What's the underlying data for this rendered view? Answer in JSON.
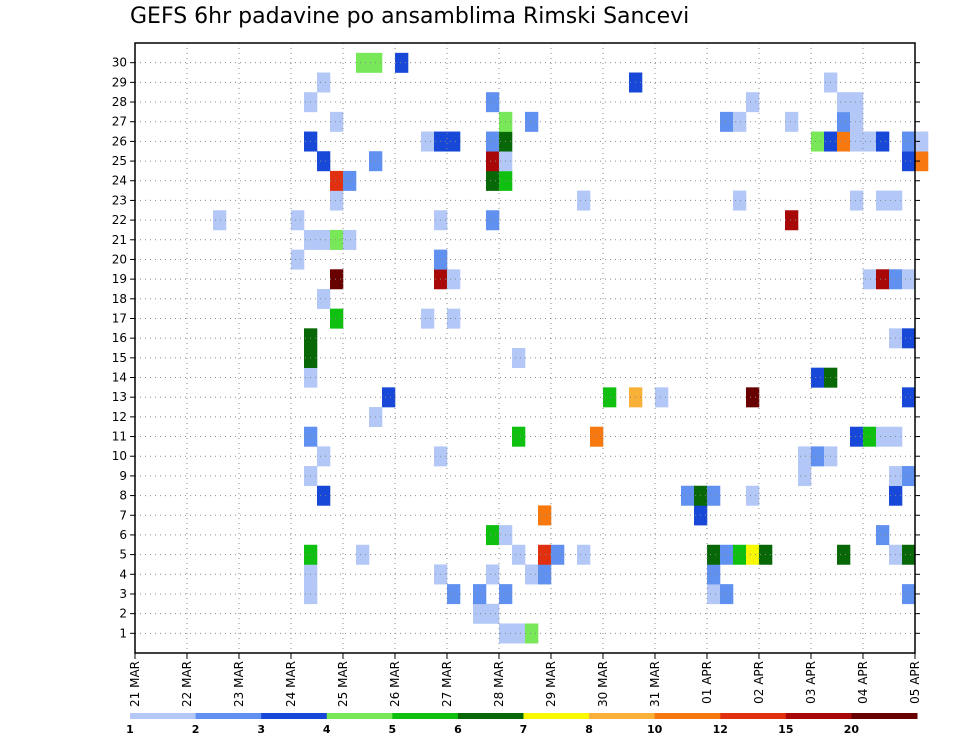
{
  "chart_data": {
    "type": "heatmap",
    "title": "GEFS 6hr padavine po ansamblima Rimski Sancevi",
    "xlabel": "",
    "ylabel": "",
    "x_ticks": [
      "21 MAR",
      "22 MAR",
      "23 MAR",
      "24 MAR",
      "25 MAR",
      "26 MAR",
      "27 MAR",
      "28 MAR",
      "29 MAR",
      "30 MAR",
      "31 MAR",
      "01 APR",
      "02 APR",
      "03 APR",
      "04 APR",
      "05 APR"
    ],
    "y_ticks": [
      1,
      2,
      3,
      4,
      5,
      6,
      7,
      8,
      9,
      10,
      11,
      12,
      13,
      14,
      15,
      16,
      17,
      18,
      19,
      20,
      21,
      22,
      23,
      24,
      25,
      26,
      27,
      28,
      29,
      30
    ],
    "time_steps_per_day": 4,
    "n_time_steps": 60,
    "n_members": 31,
    "grid": true,
    "colorbar": {
      "labels": [
        "1",
        "2",
        "3",
        "4",
        "5",
        "6",
        "7",
        "8",
        "10",
        "12",
        "15",
        "20",
        ""
      ],
      "colors": [
        "#b4c8f8",
        "#6090f0",
        "#1848d8",
        "#78e858",
        "#10c010",
        "#086808",
        "#f8f800",
        "#f8b038",
        "#f87810",
        "#e03010",
        "#a80808",
        "#680000"
      ]
    },
    "cells": [
      [
        30,
        0,
        17,
        4
      ],
      [
        30,
        0,
        18,
        4
      ],
      [
        13,
        0,
        19,
        3
      ],
      [
        30,
        0,
        20,
        3
      ],
      [
        19,
        0,
        23,
        11
      ],
      [
        20,
        0,
        23,
        2
      ],
      [
        19,
        0,
        24,
        1
      ],
      [
        1,
        1,
        28,
        1
      ],
      [
        1,
        1,
        29,
        1
      ],
      [
        1,
        1,
        30,
        4
      ],
      [
        13,
        1,
        47,
        12
      ],
      [
        2,
        2,
        26,
        1
      ],
      [
        2,
        2,
        27,
        1
      ],
      [
        3,
        3,
        13,
        1
      ],
      [
        3,
        3,
        24,
        2
      ],
      [
        3,
        3,
        26,
        2
      ],
      [
        3,
        3,
        28,
        2
      ],
      [
        3,
        3,
        44,
        1
      ],
      [
        3,
        3,
        45,
        2
      ],
      [
        3,
        3,
        59,
        2
      ],
      [
        4,
        4,
        13,
        1
      ],
      [
        4,
        4,
        23,
        1
      ],
      [
        4,
        4,
        27,
        1
      ],
      [
        4,
        4,
        30,
        1
      ],
      [
        4,
        4,
        31,
        2
      ],
      [
        4,
        4,
        44,
        2
      ],
      [
        5,
        5,
        13,
        5
      ],
      [
        5,
        5,
        17,
        1
      ],
      [
        5,
        5,
        29,
        1
      ],
      [
        5,
        5,
        31,
        10
      ],
      [
        5,
        5,
        32,
        2
      ],
      [
        5,
        5,
        34,
        1
      ],
      [
        5,
        5,
        44,
        6
      ],
      [
        5,
        5,
        45,
        2
      ],
      [
        5,
        5,
        46,
        5
      ],
      [
        5,
        5,
        47,
        7
      ],
      [
        5,
        5,
        48,
        6
      ],
      [
        5,
        5,
        54,
        6
      ],
      [
        5,
        5,
        58,
        1
      ],
      [
        5,
        5,
        59,
        6
      ],
      [
        6,
        6,
        27,
        5
      ],
      [
        6,
        6,
        28,
        1
      ],
      [
        6,
        6,
        57,
        2
      ],
      [
        7,
        7,
        31,
        9
      ],
      [
        7,
        7,
        43,
        3
      ],
      [
        8,
        8,
        14,
        3
      ],
      [
        8,
        8,
        42,
        2
      ],
      [
        8,
        8,
        43,
        6
      ],
      [
        8,
        8,
        44,
        2
      ],
      [
        8,
        8,
        47,
        1
      ],
      [
        8,
        8,
        58,
        3
      ],
      [
        9,
        9,
        13,
        1
      ],
      [
        9,
        9,
        51,
        1
      ],
      [
        9,
        9,
        58,
        1
      ],
      [
        9,
        9,
        59,
        2
      ],
      [
        10,
        10,
        14,
        1
      ],
      [
        10,
        10,
        23,
        1
      ],
      [
        10,
        10,
        51,
        1
      ],
      [
        10,
        10,
        52,
        2
      ],
      [
        10,
        10,
        53,
        1
      ],
      [
        11,
        11,
        13,
        2
      ],
      [
        11,
        11,
        29,
        5
      ],
      [
        11,
        11,
        35,
        9
      ],
      [
        11,
        11,
        55,
        3
      ],
      [
        11,
        11,
        56,
        5
      ],
      [
        11,
        11,
        57,
        1
      ],
      [
        11,
        11,
        58,
        1
      ],
      [
        12,
        12,
        18,
        1
      ],
      [
        13,
        13,
        36,
        5
      ],
      [
        13,
        13,
        38,
        8
      ],
      [
        13,
        13,
        40,
        1
      ],
      [
        13,
        13,
        59,
        3
      ],
      [
        14,
        14,
        13,
        1
      ],
      [
        14,
        14,
        52,
        3
      ],
      [
        14,
        14,
        53,
        6
      ],
      [
        15,
        15,
        13,
        6
      ],
      [
        15,
        15,
        29,
        1
      ],
      [
        16,
        16,
        13,
        6
      ],
      [
        16,
        16,
        58,
        1
      ],
      [
        16,
        16,
        59,
        3
      ],
      [
        17,
        17,
        15,
        5
      ],
      [
        17,
        17,
        22,
        1
      ],
      [
        17,
        17,
        24,
        1
      ],
      [
        18,
        18,
        14,
        1
      ],
      [
        19,
        19,
        15,
        12
      ],
      [
        19,
        19,
        56,
        1
      ],
      [
        19,
        19,
        57,
        11
      ],
      [
        19,
        19,
        58,
        2
      ],
      [
        19,
        19,
        59,
        1
      ],
      [
        20,
        20,
        12,
        1
      ],
      [
        21,
        21,
        13,
        1
      ],
      [
        21,
        21,
        14,
        1
      ],
      [
        21,
        21,
        15,
        4
      ],
      [
        21,
        21,
        16,
        1
      ],
      [
        22,
        22,
        6,
        1
      ],
      [
        22,
        22,
        12,
        1
      ],
      [
        22,
        22,
        23,
        1
      ],
      [
        22,
        22,
        27,
        2
      ],
      [
        22,
        22,
        50,
        11
      ],
      [
        23,
        23,
        15,
        1
      ],
      [
        23,
        23,
        34,
        1
      ],
      [
        23,
        23,
        46,
        1
      ],
      [
        23,
        23,
        55,
        1
      ],
      [
        23,
        23,
        57,
        1
      ],
      [
        23,
        23,
        58,
        1
      ],
      [
        24,
        24,
        15,
        10
      ],
      [
        24,
        24,
        16,
        2
      ],
      [
        24,
        24,
        27,
        6
      ],
      [
        24,
        24,
        28,
        5
      ],
      [
        25,
        25,
        14,
        3
      ],
      [
        25,
        25,
        18,
        2
      ],
      [
        25,
        25,
        27,
        11
      ],
      [
        25,
        25,
        28,
        1
      ],
      [
        25,
        25,
        59,
        3
      ],
      [
        25,
        25,
        60,
        9
      ],
      [
        26,
        26,
        13,
        3
      ],
      [
        26,
        26,
        22,
        1
      ],
      [
        26,
        26,
        23,
        3
      ],
      [
        26,
        26,
        24,
        3
      ],
      [
        26,
        26,
        27,
        2
      ],
      [
        26,
        26,
        28,
        6
      ],
      [
        26,
        26,
        52,
        4
      ],
      [
        26,
        26,
        53,
        3
      ],
      [
        26,
        26,
        54,
        9
      ],
      [
        26,
        26,
        55,
        1
      ],
      [
        26,
        26,
        56,
        1
      ],
      [
        26,
        26,
        57,
        3
      ],
      [
        26,
        26,
        59,
        2
      ],
      [
        26,
        26,
        60,
        1
      ],
      [
        27,
        27,
        15,
        1
      ],
      [
        27,
        27,
        28,
        4
      ],
      [
        27,
        27,
        30,
        2
      ],
      [
        27,
        27,
        45,
        2
      ],
      [
        27,
        27,
        46,
        1
      ],
      [
        27,
        27,
        50,
        1
      ],
      [
        27,
        27,
        54,
        2
      ],
      [
        27,
        27,
        55,
        1
      ],
      [
        28,
        28,
        13,
        1
      ],
      [
        28,
        28,
        27,
        2
      ],
      [
        28,
        28,
        47,
        1
      ],
      [
        28,
        28,
        54,
        1
      ],
      [
        28,
        28,
        55,
        1
      ],
      [
        29,
        29,
        14,
        1
      ],
      [
        29,
        29,
        38,
        3
      ],
      [
        29,
        29,
        53,
        1
      ]
    ]
  }
}
